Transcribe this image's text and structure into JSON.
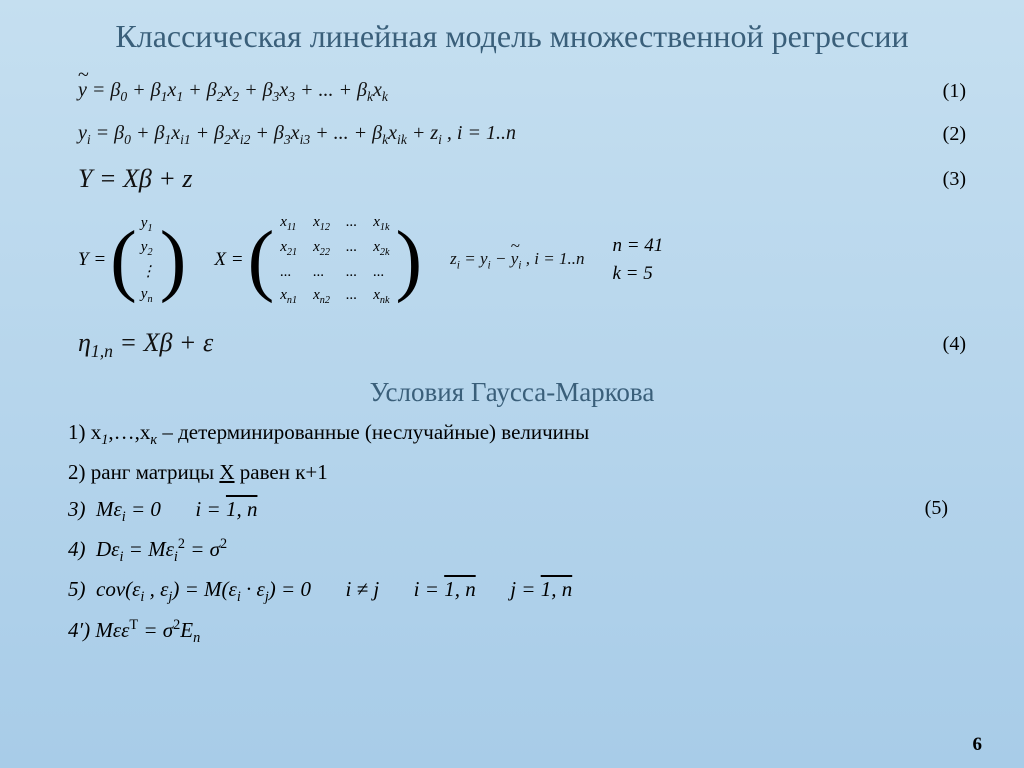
{
  "title": "Классическая линейная модель множественной регрессии",
  "eq1": "ỹ = β₀ + β₁x₁ + β₂x₂ + β₃x₃ + ... + βₖxₖ",
  "eq2": "yᵢ = β₀ + β₁xᵢ₁ + β₂xᵢ₂ + β₃xᵢ₃ + ... + βₖxᵢₖ + zᵢ , i = 1..n",
  "eq3": "Y = Xβ + z",
  "matY": {
    "label": "Y =",
    "rows": [
      "y₁",
      "y₂",
      "⋮",
      "yₙ"
    ]
  },
  "matX": {
    "label": "X =",
    "rows": [
      [
        "x₁₁",
        "x₁₂",
        "...",
        "x₁ₖ"
      ],
      [
        "x₂₁",
        "x₂₂",
        "...",
        "x₂ₖ"
      ],
      [
        "...",
        "...",
        "...",
        "..."
      ],
      [
        "xₙ₁",
        "xₙ₂",
        "...",
        "xₙₖ"
      ]
    ]
  },
  "z_def": "zᵢ = yᵢ − ỹᵢ , i = 1..n",
  "params": {
    "n": "n = 41",
    "k": "k = 5"
  },
  "eq4": "η₁,ₙ = Xβ + ε",
  "cond_title": "Условия Гаусса-Маркова",
  "cond1_pre": "1) x",
  "cond1_sub1": "1",
  "cond1_mid": ",…,x",
  "cond1_sub2": "к",
  "cond1_post": " – детерминированные (неслучайные) величины",
  "cond2_pre": "2) ранг матрицы ",
  "cond2_u": "X",
  "cond2_post": " равен к+1",
  "cond3_a": "3)  Mεᵢ = 0",
  "cond3_b": "i = 1, n",
  "cond4": "4)  Dεᵢ = Mεᵢ² = σ²",
  "cond5_a": "5)  cov(εᵢ , εⱼ) = M(εᵢ · εⱼ) = 0",
  "cond5_b": "i ≠ j",
  "cond5_c": "i = 1, n",
  "cond5_d": "j = 1, n",
  "cond4p": "4′) Mεεᵀ = σ²Eₙ",
  "eq_nums": [
    "(1)",
    "(2)",
    "(3)",
    "(4)",
    "(5)"
  ],
  "page": "6",
  "colors": {
    "title": "#3a5f7a",
    "text": "#111111"
  }
}
